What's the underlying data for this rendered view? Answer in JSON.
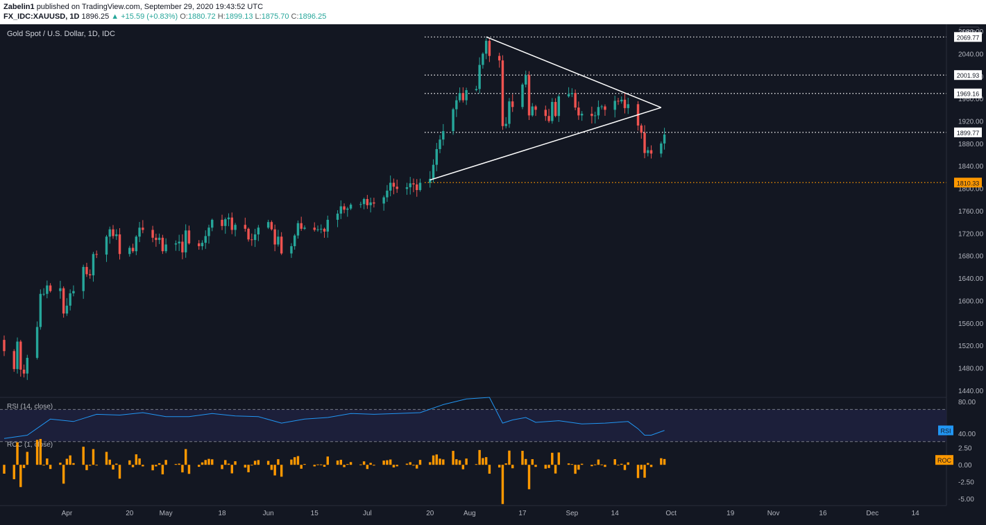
{
  "header": {
    "author": "Zabelin1",
    "published": "published on TradingView.com, September 29, 2020 19:43:52 UTC",
    "symbol": "FX_IDC:XAUUSD, 1D",
    "last": "1896.25",
    "change": "▲ +15.59 (+0.83%)",
    "o_label": "O:",
    "o": "1880.72",
    "h_label": "H:",
    "h": "1899.13",
    "l_label": "L:",
    "l": "1875.70",
    "c_label": "C:",
    "c": "1896.25"
  },
  "chart_data": [
    {
      "type": "candlestick",
      "title": "Gold Spot / U.S. Dollar, 1D, IDC",
      "currency": "USD",
      "y_ticks": [
        1440,
        1480,
        1520,
        1560,
        1600,
        1640,
        1680,
        1720,
        1760,
        1800,
        1840,
        1880,
        1920,
        1960,
        2000,
        2040,
        2080
      ],
      "y_tick_labels": [
        "1440.00",
        "1480.00",
        "1520.00",
        "1560.00",
        "1600.00",
        "1640.00",
        "1680.00",
        "1720.00",
        "1760.00",
        "1800.00",
        "1840.00",
        "1880.00",
        "1920.00",
        "1960.00",
        "2000.00",
        "2040.00",
        "2080.00"
      ],
      "ylim": [
        1430,
        2085
      ],
      "x_ticks": [
        {
          "date": "2020-04-01",
          "label": "Apr"
        },
        {
          "date": "2020-04-20",
          "label": "20"
        },
        {
          "date": "2020-05-01",
          "label": "May"
        },
        {
          "date": "2020-05-18",
          "label": "18"
        },
        {
          "date": "2020-06-01",
          "label": "Jun"
        },
        {
          "date": "2020-06-15",
          "label": "15"
        },
        {
          "date": "2020-07-01",
          "label": "Jul"
        },
        {
          "date": "2020-07-20",
          "label": "20"
        },
        {
          "date": "2020-08-01",
          "label": "Aug"
        },
        {
          "date": "2020-08-17",
          "label": "17"
        },
        {
          "date": "2020-09-01",
          "label": "Sep"
        },
        {
          "date": "2020-09-14",
          "label": "14"
        },
        {
          "date": "2020-10-01",
          "label": "Oct"
        },
        {
          "date": "2020-10-19",
          "label": "19"
        },
        {
          "date": "2020-11-01",
          "label": "Nov"
        },
        {
          "date": "2020-11-16",
          "label": "16"
        },
        {
          "date": "2020-12-01",
          "label": "Dec"
        },
        {
          "date": "2020-12-14",
          "label": "14"
        }
      ],
      "x_range": [
        "2020-03-13",
        "2020-12-23"
      ],
      "closes": [
        [
          "2020-03-13",
          1510
        ],
        [
          "2020-03-16",
          1478
        ],
        [
          "2020-03-17",
          1527
        ],
        [
          "2020-03-18",
          1477
        ],
        [
          "2020-03-19",
          1470
        ],
        [
          "2020-03-20",
          1498
        ],
        [
          "2020-03-23",
          1553
        ],
        [
          "2020-03-24",
          1612
        ],
        [
          "2020-03-25",
          1612
        ],
        [
          "2020-03-26",
          1627
        ],
        [
          "2020-03-27",
          1617
        ],
        [
          "2020-03-30",
          1622
        ],
        [
          "2020-03-31",
          1577
        ],
        [
          "2020-04-01",
          1591
        ],
        [
          "2020-04-02",
          1613
        ],
        [
          "2020-04-03",
          1617
        ],
        [
          "2020-04-06",
          1660
        ],
        [
          "2020-04-07",
          1647
        ],
        [
          "2020-04-08",
          1645
        ],
        [
          "2020-04-09",
          1683
        ],
        [
          "2020-04-10",
          1682
        ],
        [
          "2020-04-13",
          1714
        ],
        [
          "2020-04-14",
          1727
        ],
        [
          "2020-04-15",
          1715
        ],
        [
          "2020-04-16",
          1718
        ],
        [
          "2020-04-17",
          1683
        ],
        [
          "2020-04-20",
          1694
        ],
        [
          "2020-04-21",
          1688
        ],
        [
          "2020-04-22",
          1714
        ],
        [
          "2020-04-23",
          1730
        ],
        [
          "2020-04-24",
          1726
        ],
        [
          "2020-04-27",
          1712
        ],
        [
          "2020-04-28",
          1708
        ],
        [
          "2020-04-29",
          1712
        ],
        [
          "2020-04-30",
          1688
        ],
        [
          "2020-05-01",
          1700
        ],
        [
          "2020-05-04",
          1702
        ],
        [
          "2020-05-05",
          1705
        ],
        [
          "2020-05-06",
          1686
        ],
        [
          "2020-05-07",
          1725
        ],
        [
          "2020-05-08",
          1702
        ],
        [
          "2020-05-11",
          1697
        ],
        [
          "2020-05-12",
          1703
        ],
        [
          "2020-05-13",
          1715
        ],
        [
          "2020-05-14",
          1730
        ],
        [
          "2020-05-15",
          1744
        ],
        [
          "2020-05-18",
          1733
        ],
        [
          "2020-05-19",
          1745
        ],
        [
          "2020-05-20",
          1748
        ],
        [
          "2020-05-21",
          1726
        ],
        [
          "2020-05-22",
          1735
        ],
        [
          "2020-05-25",
          1728
        ],
        [
          "2020-05-26",
          1709
        ],
        [
          "2020-05-27",
          1708
        ],
        [
          "2020-05-28",
          1718
        ],
        [
          "2020-05-29",
          1730
        ],
        [
          "2020-06-01",
          1740
        ],
        [
          "2020-06-02",
          1727
        ],
        [
          "2020-06-03",
          1700
        ],
        [
          "2020-06-04",
          1714
        ],
        [
          "2020-06-05",
          1684
        ],
        [
          "2020-06-08",
          1697
        ],
        [
          "2020-06-09",
          1716
        ],
        [
          "2020-06-10",
          1738
        ],
        [
          "2020-06-11",
          1728
        ],
        [
          "2020-06-12",
          1730
        ],
        [
          "2020-06-15",
          1726
        ],
        [
          "2020-06-16",
          1727
        ],
        [
          "2020-06-17",
          1728
        ],
        [
          "2020-06-18",
          1723
        ],
        [
          "2020-06-19",
          1744
        ],
        [
          "2020-06-22",
          1755
        ],
        [
          "2020-06-23",
          1768
        ],
        [
          "2020-06-24",
          1762
        ],
        [
          "2020-06-25",
          1764
        ],
        [
          "2020-06-26",
          1771
        ],
        [
          "2020-06-29",
          1772
        ],
        [
          "2020-06-30",
          1781
        ],
        [
          "2020-07-01",
          1770
        ],
        [
          "2020-07-02",
          1775
        ],
        [
          "2020-07-03",
          1773
        ],
        [
          "2020-07-06",
          1784
        ],
        [
          "2020-07-07",
          1796
        ],
        [
          "2020-07-08",
          1810
        ],
        [
          "2020-07-09",
          1803
        ],
        [
          "2020-07-10",
          1799
        ],
        [
          "2020-07-13",
          1802
        ],
        [
          "2020-07-14",
          1809
        ],
        [
          "2020-07-15",
          1807
        ],
        [
          "2020-07-16",
          1797
        ],
        [
          "2020-07-17",
          1810
        ],
        [
          "2020-07-20",
          1817
        ],
        [
          "2020-07-21",
          1842
        ],
        [
          "2020-07-22",
          1870
        ],
        [
          "2020-07-23",
          1887
        ],
        [
          "2020-07-24",
          1902
        ],
        [
          "2020-07-27",
          1941
        ],
        [
          "2020-07-28",
          1957
        ],
        [
          "2020-07-29",
          1970
        ],
        [
          "2020-07-30",
          1957
        ],
        [
          "2020-07-31",
          1975
        ],
        [
          "2020-08-03",
          1977
        ],
        [
          "2020-08-04",
          2020
        ],
        [
          "2020-08-05",
          2040
        ],
        [
          "2020-08-06",
          2063
        ],
        [
          "2020-08-07",
          2036
        ],
        [
          "2020-08-10",
          2028
        ],
        [
          "2020-08-11",
          1911
        ],
        [
          "2020-08-12",
          1915
        ],
        [
          "2020-08-13",
          1955
        ],
        [
          "2020-08-14",
          1945
        ],
        [
          "2020-08-17",
          1985
        ],
        [
          "2020-08-18",
          2002
        ],
        [
          "2020-08-19",
          1930
        ],
        [
          "2020-08-20",
          1946
        ],
        [
          "2020-08-21",
          1940
        ],
        [
          "2020-08-24",
          1929
        ],
        [
          "2020-08-25",
          1920
        ],
        [
          "2020-08-26",
          1954
        ],
        [
          "2020-08-27",
          1929
        ],
        [
          "2020-08-28",
          1964
        ],
        [
          "2020-08-31",
          1968
        ],
        [
          "2020-09-01",
          1970
        ],
        [
          "2020-09-02",
          1944
        ],
        [
          "2020-09-03",
          1930
        ],
        [
          "2020-09-04",
          1933
        ],
        [
          "2020-09-07",
          1929
        ],
        [
          "2020-09-08",
          1930
        ],
        [
          "2020-09-09",
          1945
        ],
        [
          "2020-09-10",
          1946
        ],
        [
          "2020-09-11",
          1940
        ],
        [
          "2020-09-14",
          1956
        ],
        [
          "2020-09-15",
          1955
        ],
        [
          "2020-09-16",
          1958
        ],
        [
          "2020-09-17",
          1943
        ],
        [
          "2020-09-18",
          1950
        ],
        [
          "2020-09-21",
          1912
        ],
        [
          "2020-09-22",
          1899
        ],
        [
          "2020-09-23",
          1863
        ],
        [
          "2020-09-24",
          1868
        ],
        [
          "2020-09-25",
          1862
        ],
        [
          "2020-09-28",
          1880
        ],
        [
          "2020-09-29",
          1896
        ]
      ],
      "first_open": 1530,
      "levels": [
        {
          "value": 2069.77,
          "label": "2069.77",
          "color": "#ffffff"
        },
        {
          "value": 2001.93,
          "label": "2001.93",
          "color": "#ffffff"
        },
        {
          "value": 1969.16,
          "label": "1969.16",
          "color": "#ffffff"
        },
        {
          "value": 1899.77,
          "label": "1899.77",
          "color": "#ffffff"
        },
        {
          "value": 1810.33,
          "label": "1810.33",
          "color": "#ff9800"
        }
      ],
      "triangle": {
        "upper": [
          [
            "2020-08-06",
            2070
          ],
          [
            "2020-09-28",
            1944
          ]
        ],
        "lower": [
          [
            "2020-07-20",
            1815
          ],
          [
            "2020-09-28",
            1944
          ]
        ],
        "color": "#ffffff"
      },
      "colors": {
        "up": "#26a69a",
        "down": "#ef5350"
      }
    },
    {
      "type": "line",
      "title": "RSI (14, close)",
      "series_tag": "RSI",
      "y_ticks": [
        80,
        40
      ],
      "y_tick_labels": [
        "80.00",
        "40.00"
      ],
      "ylim": [
        35,
        85
      ],
      "bands": [
        70,
        30
      ],
      "color": "#2196f3",
      "values": [
        [
          "2020-03-13",
          34
        ],
        [
          "2020-03-20",
          38
        ],
        [
          "2020-03-27",
          58
        ],
        [
          "2020-04-03",
          55
        ],
        [
          "2020-04-10",
          64
        ],
        [
          "2020-04-17",
          63
        ],
        [
          "2020-04-24",
          66
        ],
        [
          "2020-05-01",
          61
        ],
        [
          "2020-05-08",
          61
        ],
        [
          "2020-05-15",
          65
        ],
        [
          "2020-05-22",
          62
        ],
        [
          "2020-05-29",
          61
        ],
        [
          "2020-06-05",
          53
        ],
        [
          "2020-06-12",
          58
        ],
        [
          "2020-06-19",
          60
        ],
        [
          "2020-06-26",
          65
        ],
        [
          "2020-07-03",
          64
        ],
        [
          "2020-07-10",
          65
        ],
        [
          "2020-07-17",
          66
        ],
        [
          "2020-07-24",
          76
        ],
        [
          "2020-07-31",
          83
        ],
        [
          "2020-08-07",
          85
        ],
        [
          "2020-08-11",
          53
        ],
        [
          "2020-08-14",
          57
        ],
        [
          "2020-08-18",
          60
        ],
        [
          "2020-08-21",
          54
        ],
        [
          "2020-08-28",
          56
        ],
        [
          "2020-09-04",
          52
        ],
        [
          "2020-09-11",
          53
        ],
        [
          "2020-09-18",
          55
        ],
        [
          "2020-09-21",
          46
        ],
        [
          "2020-09-23",
          38
        ],
        [
          "2020-09-25",
          38
        ],
        [
          "2020-09-29",
          44
        ]
      ]
    },
    {
      "type": "bar",
      "title": "ROC (1, close)",
      "series_tag": "ROC",
      "y_ticks": [
        2.5,
        0,
        -2.5,
        -5
      ],
      "y_tick_labels": [
        "2.50",
        "0.00",
        "-2.50",
        "-5.00"
      ],
      "ylim": [
        -6,
        4
      ],
      "color": "#ff9800"
    }
  ]
}
